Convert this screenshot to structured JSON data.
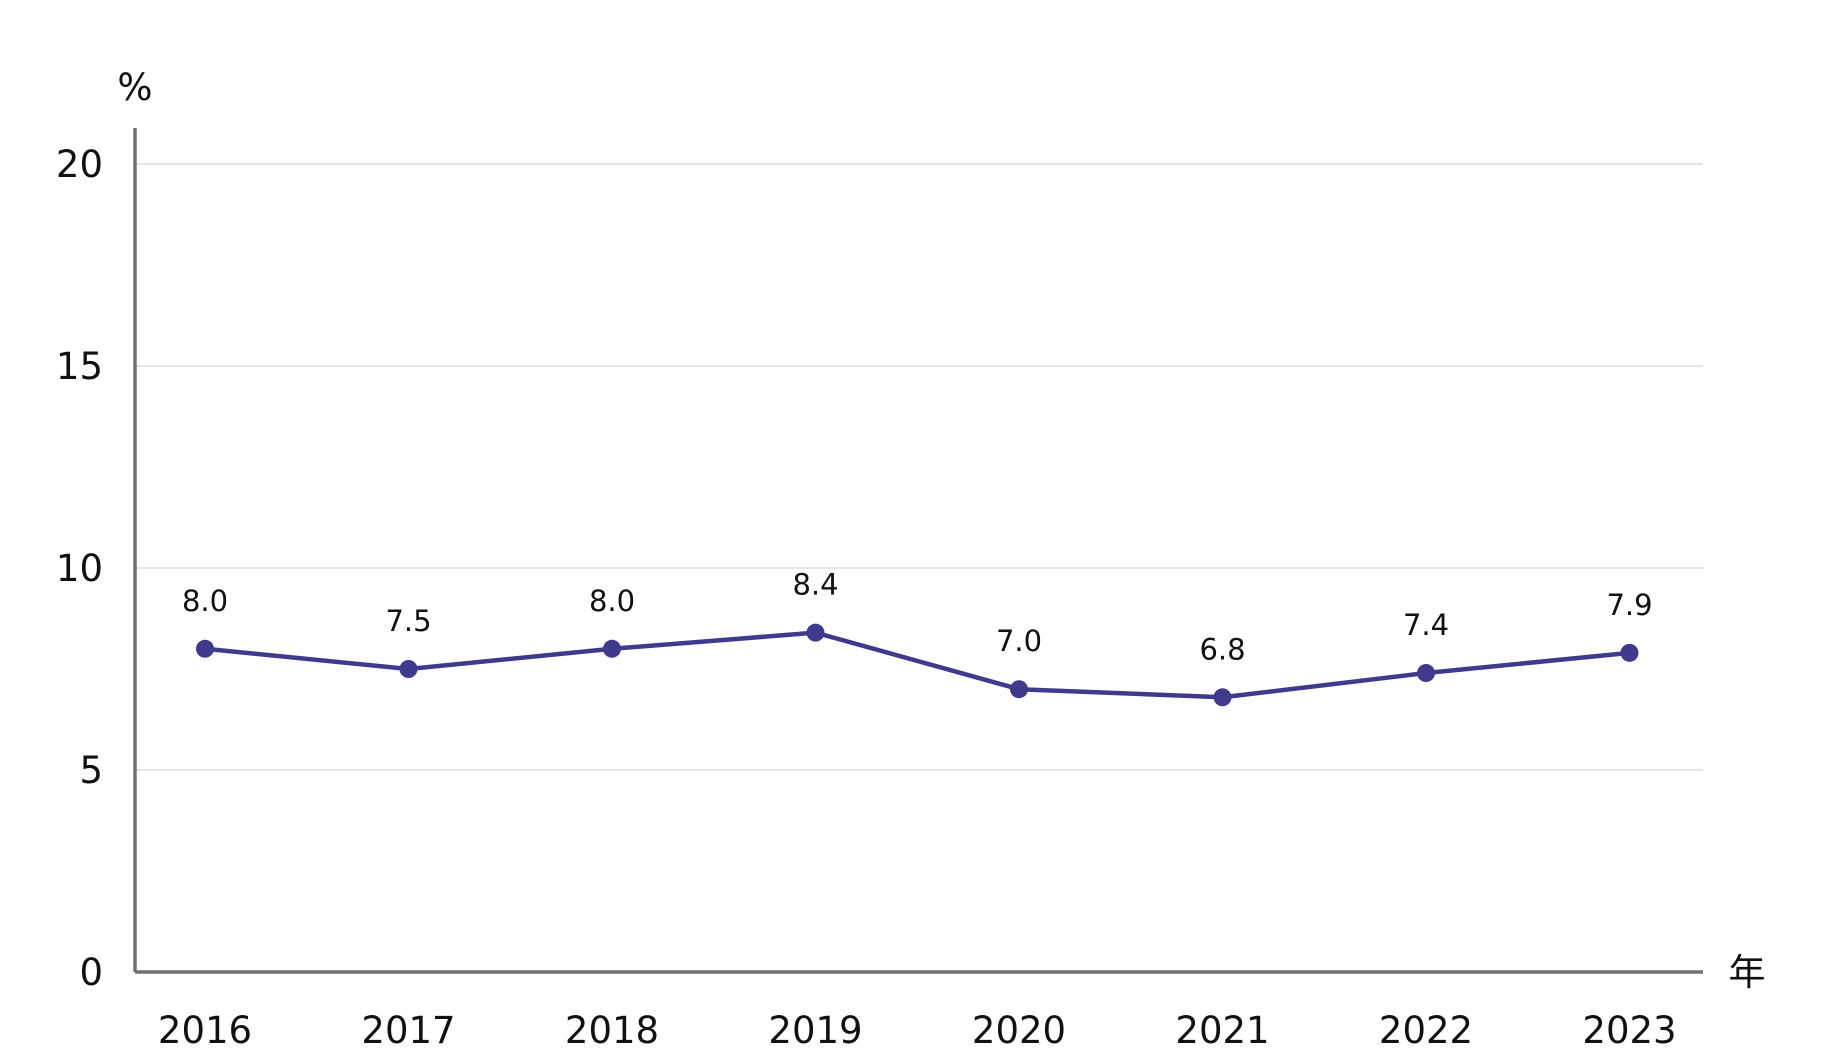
{
  "chart_data": {
    "type": "line",
    "title": "",
    "xlabel": "年",
    "ylabel": "%",
    "categories": [
      "2016",
      "2017",
      "2018",
      "2019",
      "2020",
      "2021",
      "2022",
      "2023"
    ],
    "series": [
      {
        "values": [
          8.0,
          7.5,
          8.0,
          8.4,
          7.0,
          6.8,
          7.4,
          7.9
        ],
        "data_labels": [
          "8.0",
          "7.5",
          "8.0",
          "8.4",
          "7.0",
          "6.8",
          "7.4",
          "7.9"
        ],
        "color": "#3f3a8c"
      }
    ],
    "y_ticks": [
      "0",
      "5",
      "10",
      "15",
      "20"
    ],
    "ylim": [
      0,
      20
    ],
    "grid": true,
    "gridline_color": "#dddddd",
    "axis_color": "#707070",
    "legend": "none"
  }
}
